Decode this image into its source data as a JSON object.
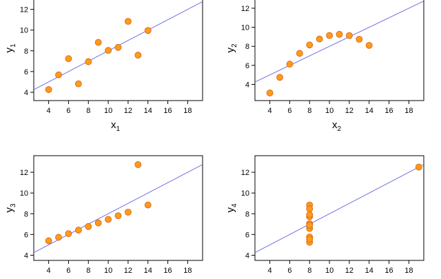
{
  "chart_data": [
    {
      "type": "scatter",
      "xlabel": "x",
      "xlabel_sub": "1",
      "ylabel": "y",
      "ylabel_sub": "1",
      "xlim": [
        2.5,
        19.5
      ],
      "ylim": [
        3.2,
        13.3
      ],
      "xticks": [
        4,
        6,
        8,
        10,
        12,
        14,
        16,
        18
      ],
      "yticks": [
        4,
        6,
        8,
        10,
        12
      ],
      "x": [
        10,
        8,
        13,
        9,
        11,
        14,
        6,
        4,
        12,
        7,
        5
      ],
      "y": [
        8.04,
        6.95,
        7.58,
        8.81,
        8.33,
        9.96,
        7.24,
        4.26,
        10.84,
        4.82,
        5.68
      ],
      "fit": {
        "intercept": 3.0,
        "slope": 0.5
      },
      "point_color": "#ff9a1a",
      "point_edge": "#d4600f",
      "line_color": "#6f6fe8"
    },
    {
      "type": "scatter",
      "xlabel": "x",
      "xlabel_sub": "2",
      "ylabel": "y",
      "ylabel_sub": "2",
      "xlim": [
        2.5,
        19.5
      ],
      "ylim": [
        2.3,
        13.3
      ],
      "xticks": [
        4,
        6,
        8,
        10,
        12,
        14,
        16,
        18
      ],
      "yticks": [
        4,
        6,
        8,
        10,
        12
      ],
      "x": [
        10,
        8,
        13,
        9,
        11,
        14,
        6,
        4,
        12,
        7,
        5
      ],
      "y": [
        9.14,
        8.14,
        8.74,
        8.77,
        9.26,
        8.1,
        6.13,
        3.1,
        9.13,
        7.26,
        4.74
      ],
      "fit": {
        "intercept": 3.0,
        "slope": 0.5
      },
      "point_color": "#ff9a1a",
      "point_edge": "#d4600f",
      "line_color": "#6f6fe8"
    },
    {
      "type": "scatter",
      "xlabel": "",
      "xlabel_sub": "",
      "ylabel": "y",
      "ylabel_sub": "3",
      "xlim": [
        2.5,
        19.5
      ],
      "ylim": [
        3.5,
        13.6
      ],
      "xticks": [
        4,
        6,
        8,
        10,
        12,
        14,
        16,
        18
      ],
      "yticks": [
        4,
        6,
        8,
        10,
        12
      ],
      "x": [
        10,
        8,
        13,
        9,
        11,
        14,
        6,
        4,
        12,
        7,
        5
      ],
      "y": [
        7.46,
        6.77,
        12.74,
        7.11,
        7.81,
        8.84,
        6.08,
        5.39,
        8.15,
        6.42,
        5.73
      ],
      "fit": {
        "intercept": 3.0,
        "slope": 0.5
      },
      "point_color": "#ff9a1a",
      "point_edge": "#d4600f",
      "line_color": "#6f6fe8"
    },
    {
      "type": "scatter",
      "xlabel": "",
      "xlabel_sub": "",
      "ylabel": "y",
      "ylabel_sub": "4",
      "xlim": [
        2.5,
        19.5
      ],
      "ylim": [
        3.5,
        13.6
      ],
      "xticks": [
        4,
        6,
        8,
        10,
        12,
        14,
        16,
        18
      ],
      "yticks": [
        4,
        6,
        8,
        10,
        12
      ],
      "x": [
        8,
        8,
        8,
        8,
        8,
        8,
        8,
        19,
        8,
        8,
        8
      ],
      "y": [
        6.58,
        5.76,
        7.71,
        8.84,
        8.47,
        7.04,
        5.25,
        12.5,
        5.56,
        7.91,
        6.89
      ],
      "fit": {
        "intercept": 3.0,
        "slope": 0.5
      },
      "point_color": "#ff9a1a",
      "point_edge": "#d4600f",
      "line_color": "#6f6fe8"
    }
  ]
}
